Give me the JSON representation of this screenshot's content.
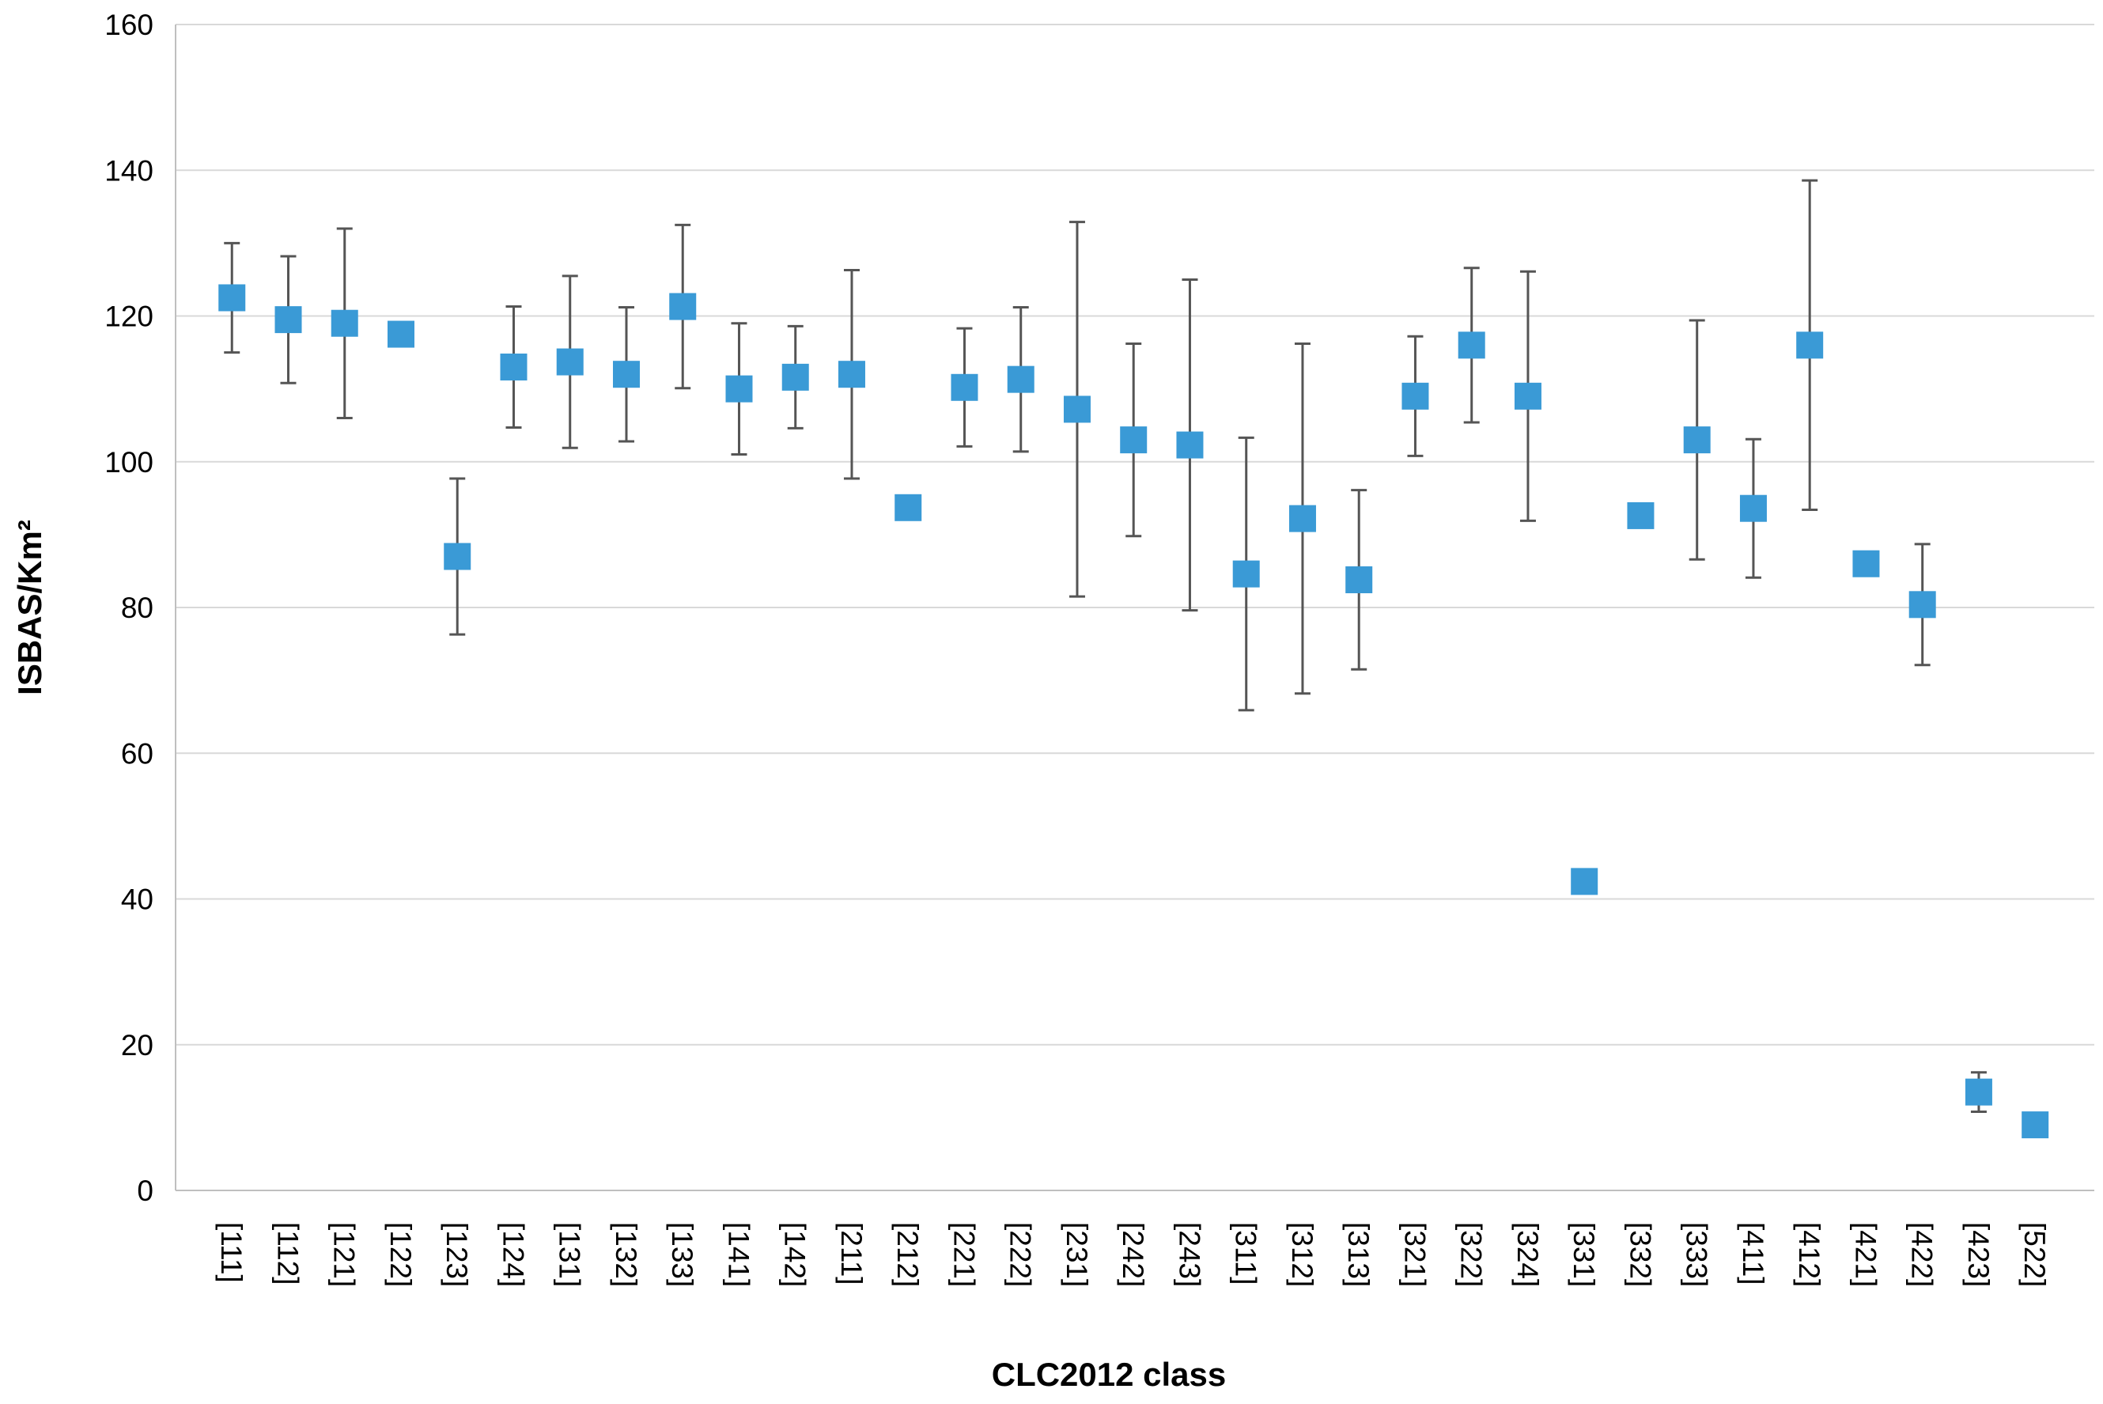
{
  "chart_data": {
    "type": "errorbar",
    "xlabel": "CLC2012 class",
    "ylabel": "ISBAS/Km²",
    "categories": [
      "[111]",
      "[112]",
      "[121]",
      "[122]",
      "[123]",
      "[124]",
      "[131]",
      "[132]",
      "[133]",
      "[141]",
      "[142]",
      "[211]",
      "[212]",
      "[221]",
      "[222]",
      "[231]",
      "[242]",
      "[243]",
      "[311]",
      "[312]",
      "[313]",
      "[321]",
      "[322]",
      "[324]",
      "[331]",
      "[332]",
      "[333]",
      "[411]",
      "[412]",
      "[421]",
      "[422]",
      "[423]",
      "[522]"
    ],
    "values": [
      122.5,
      119.5,
      119,
      117.5,
      87,
      113,
      113.7,
      112,
      121.3,
      110,
      111.6,
      112,
      93.7,
      110.2,
      111.3,
      107.2,
      103,
      102.3,
      84.6,
      92.2,
      83.8,
      109,
      116,
      109,
      42.4,
      92.6,
      103,
      93.6,
      116,
      86,
      80.4,
      13.5,
      9
    ],
    "errors": [
      7.5,
      8.7,
      13,
      null,
      10.7,
      8.3,
      11.8,
      9.2,
      11.2,
      9,
      7,
      14.3,
      null,
      8.1,
      9.9,
      25.7,
      13.2,
      22.7,
      18.7,
      24,
      12.3,
      8.2,
      10.6,
      17.1,
      null,
      null,
      16.4,
      9.5,
      22.6,
      null,
      8.3,
      2.7,
      null
    ],
    "color": "#3a9ad6",
    "ylim": [
      0,
      160
    ],
    "yticks": [
      0,
      20,
      40,
      60,
      80,
      100,
      120,
      140,
      160
    ],
    "grid": true
  }
}
